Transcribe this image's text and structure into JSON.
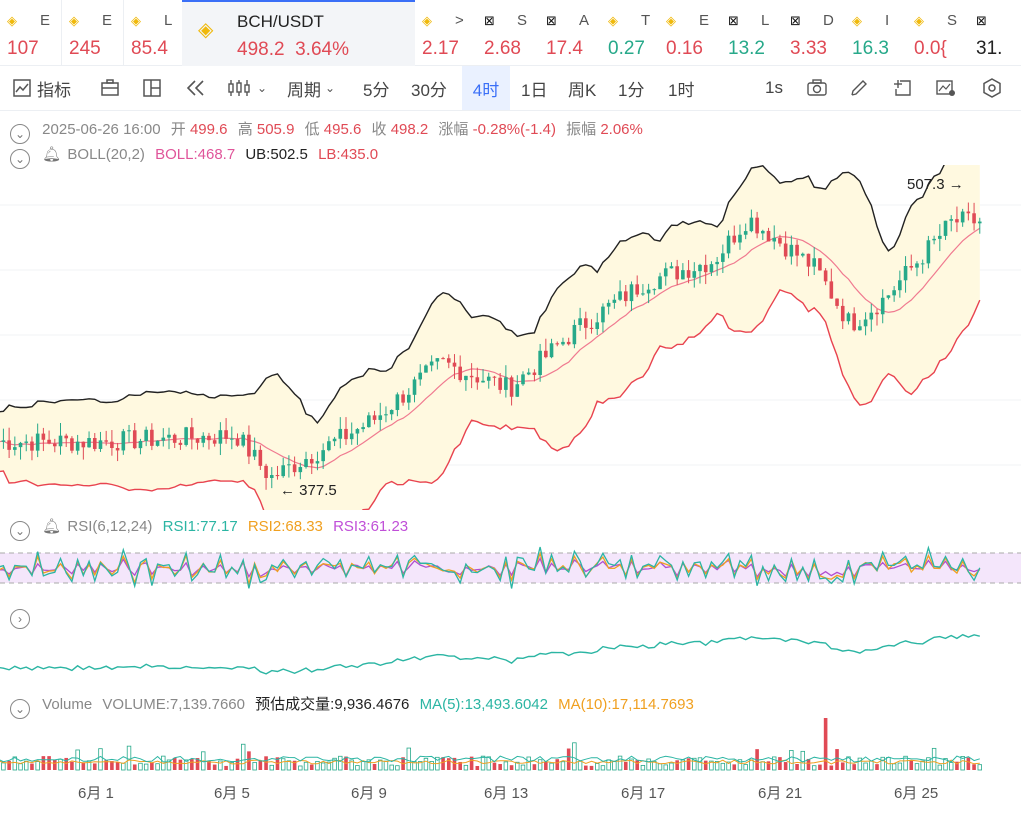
{
  "ticker_tabs": [
    {
      "icon": "binance-icon",
      "name": "E",
      "price": "107",
      "color": "up"
    },
    {
      "icon": "binance-icon",
      "name": "E",
      "price": "245",
      "color": "up"
    },
    {
      "icon": "binance-icon",
      "name": "L",
      "price": "85.4",
      "color": "up"
    },
    {
      "icon": "binance-icon",
      "name": "BCH/USDT",
      "price": "498.2",
      "change": "3.64%",
      "color": "up",
      "active": true
    },
    {
      "icon": "binance-icon",
      "name": ">",
      "price": "2.17",
      "color": "up"
    },
    {
      "icon": "exchange-icon",
      "name": "S",
      "price": "2.68",
      "color": "up"
    },
    {
      "icon": "exchange-icon",
      "name": "A",
      "price": "17.4",
      "color": "up"
    },
    {
      "icon": "binance-icon",
      "name": "T",
      "price": "0.27",
      "color": "down"
    },
    {
      "icon": "binance-icon",
      "name": "E",
      "price": "0.16",
      "color": "up"
    },
    {
      "icon": "exchange-icon",
      "name": "L",
      "price": "13.2",
      "color": "down"
    },
    {
      "icon": "exchange-icon",
      "name": "D",
      "price": "3.33",
      "color": "up"
    },
    {
      "icon": "binance-icon",
      "name": "I",
      "price": "16.3",
      "color": "down"
    },
    {
      "icon": "binance-icon",
      "name": "S",
      "price": "0.0{",
      "color": "up"
    },
    {
      "icon": "exchange-icon",
      "name": "",
      "price": "31.",
      "color": "dark"
    }
  ],
  "toolbar": {
    "indicators": "指标",
    "period_menu": "周期",
    "intervals": [
      "5分",
      "30分",
      "4时",
      "1日",
      "周K",
      "1分",
      "1时"
    ],
    "selected_interval": "4时",
    "refresh": "1s"
  },
  "ohlc": {
    "date": "2025-06-26 16:00",
    "open_label": "开",
    "open": "499.6",
    "high_label": "高",
    "high": "505.9",
    "low_label": "低",
    "low": "495.6",
    "close_label": "收",
    "close": "498.2",
    "change_label": "涨幅",
    "change": "-0.28%(-1.4)",
    "amplitude_label": "振幅",
    "amplitude": "2.06%"
  },
  "boll": {
    "label": "BOLL(20,2)",
    "mid": "BOLL:468.7",
    "ub": "UB:502.5",
    "lb": "LB:435.0"
  },
  "price_markers": {
    "high": "507.3",
    "low": "377.5"
  },
  "rsi": {
    "label": "RSI(6,12,24)",
    "rsi1": "RSI1:77.17",
    "rsi2": "RSI2:68.33",
    "rsi3": "RSI3:61.23"
  },
  "volume": {
    "label": "Volume",
    "volume": "VOLUME:7,139.7660",
    "estimated": "预估成交量:9,936.4676",
    "ma5": "MA(5):13,493.6042",
    "ma10": "MA(10):17,114.7693"
  },
  "x_axis": [
    "6月 1",
    "6月 5",
    "6月 9",
    "6月 13",
    "6月 17",
    "6月 21",
    "6月 25"
  ],
  "colors": {
    "up": "#e04a55",
    "down": "#27a98a",
    "accent": "#3a6ff7",
    "boll_mid": "#f07a90",
    "band_fill": "#fff9e0"
  },
  "chart_data": {
    "type": "candlestick",
    "series_close_anchors": [
      {
        "date": "6月 1",
        "price": 395
      },
      {
        "date": "6月 5",
        "price": 398
      },
      {
        "date": "6月 6",
        "price": 378
      },
      {
        "date": "6月 9",
        "price": 405
      },
      {
        "date": "6月 11",
        "price": 432
      },
      {
        "date": "6月 13",
        "price": 420
      },
      {
        "date": "6月 15",
        "price": 448
      },
      {
        "date": "6月 17",
        "price": 470
      },
      {
        "date": "6月 19",
        "price": 480
      },
      {
        "date": "6月 20",
        "price": 500
      },
      {
        "date": "6月 22",
        "price": 476
      },
      {
        "date": "6月 23",
        "price": 450
      },
      {
        "date": "6月 24",
        "price": 462
      },
      {
        "date": "6月 26",
        "price": 498.2
      }
    ]
  }
}
